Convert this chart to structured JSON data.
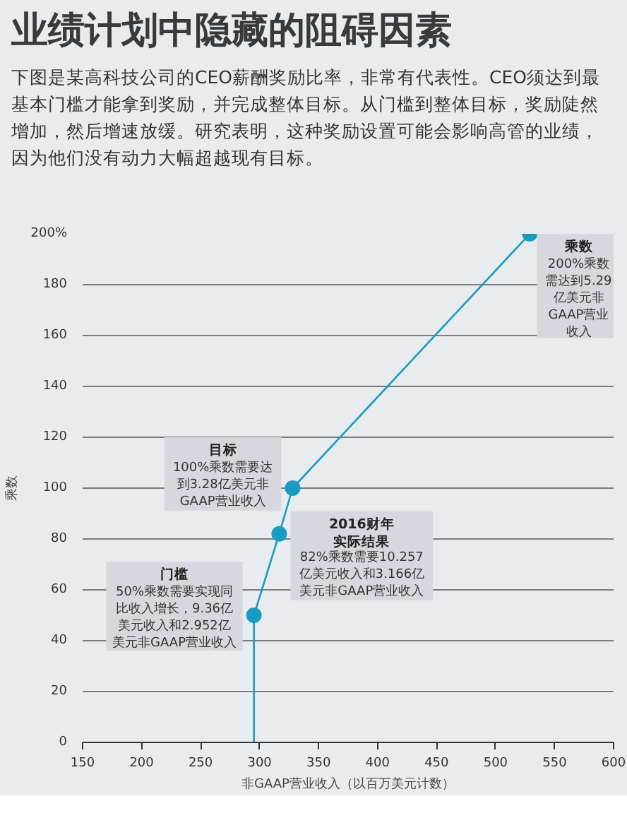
{
  "chart_data": {
    "type": "line",
    "title": "业绩计划中隐藏的阻碍因素",
    "subtitle": "下图是某高科技公司的CEO薪酬奖励比率，非常有代表性。CEO须达到最基本门槛才能拿到奖励，并完成整体目标。从门槛到整体目标，奖励陡然增加，然后增速放缓。研究表明，这种奖励设置可能会影响高管的业绩，因为他们没有动力大幅超越现有目标。",
    "xlabel": "非GAAP营业收入（以百万美元计数）",
    "ylabel": "乘数",
    "series": [
      {
        "color": "#1a9bc4",
        "x": [
          295.2,
          295.2,
          316.6,
          328,
          529
        ],
        "values": [
          0,
          50,
          82,
          100,
          200
        ],
        "marker": "none"
      },
      {
        "type": "scatter",
        "color": "#1a9bc4",
        "x": [
          295.2,
          316.6,
          328,
          529
        ],
        "values": [
          50,
          82,
          100,
          200
        ],
        "marker": "circle"
      }
    ],
    "xlim": [
      150,
      600
    ],
    "xticks": [
      150,
      200,
      250,
      300,
      350,
      400,
      450,
      500,
      550,
      600
    ],
    "ylim": [
      0,
      200
    ],
    "yticks": [
      0,
      20,
      40,
      60,
      80,
      100,
      120,
      140,
      160,
      180,
      {
        "value": 200,
        "label": "200%"
      }
    ],
    "grid": "y",
    "annotations": [
      {
        "text": "门槛\n50%乘数需要实现同比收入增长，9.36亿美元收入和2.952亿美元非GAAP营业收入",
        "x": 295.2,
        "y": 50
      },
      {
        "text": "目标\n100%乘数需要达到3.28亿美元非GAAP营业收入",
        "x": 328,
        "y": 100
      },
      {
        "text": "2016财年实际结果\n82%乘数需要10.257亿美元收入和3.166亿美元非GAAP营业收入",
        "x": 316.6,
        "y": 82
      },
      {
        "text": "乘数\n200%乘数需达到5.29亿美元非GAAP营业收入",
        "x": 529,
        "y": 200
      }
    ]
  }
}
